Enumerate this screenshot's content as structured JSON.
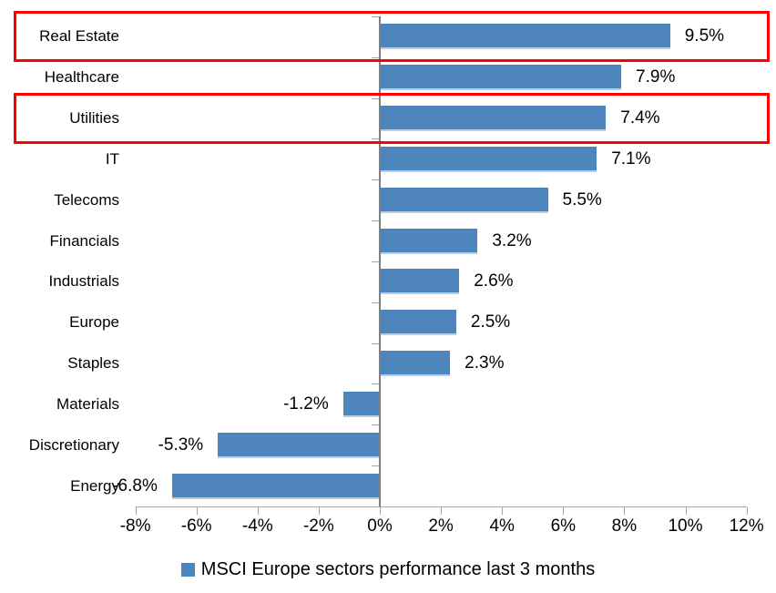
{
  "chart_data": {
    "type": "bar",
    "orientation": "horizontal",
    "title": "",
    "categories": [
      "Real Estate",
      "Healthcare",
      "Utilities",
      "IT",
      "Telecoms",
      "Financials",
      "Industrials",
      "Europe",
      "Staples",
      "Materials",
      "Discretionary",
      "Energy"
    ],
    "values": [
      9.5,
      7.9,
      7.4,
      7.1,
      5.5,
      3.2,
      2.6,
      2.5,
      2.3,
      -1.2,
      -5.3,
      -6.8
    ],
    "value_labels": [
      "9.5%",
      "7.9%",
      "7.4%",
      "7.1%",
      "5.5%",
      "3.2%",
      "2.6%",
      "2.5%",
      "2.3%",
      "-1.2%",
      "-5.3%",
      "-6.8%"
    ],
    "x_axis": {
      "min": -8,
      "max": 12,
      "ticks": [
        -8,
        -6,
        -4,
        -2,
        0,
        2,
        4,
        6,
        8,
        10,
        12
      ],
      "tick_labels": [
        "-8%",
        "-6%",
        "-4%",
        "-2%",
        "0%",
        "2%",
        "4%",
        "6%",
        "8%",
        "10%",
        "12%"
      ]
    },
    "legend": {
      "label": "MSCI Europe sectors performance last 3 months"
    },
    "colors": {
      "bar": "#4e85bd",
      "bar_edge": "#b9cfe4",
      "highlight": "#ff0000",
      "axis": "#a6a6a6",
      "category_axis": "#7f7f7f"
    },
    "highlighted_categories": [
      "Real Estate",
      "Utilities"
    ],
    "grid": false,
    "legend_position": "bottom-center"
  }
}
